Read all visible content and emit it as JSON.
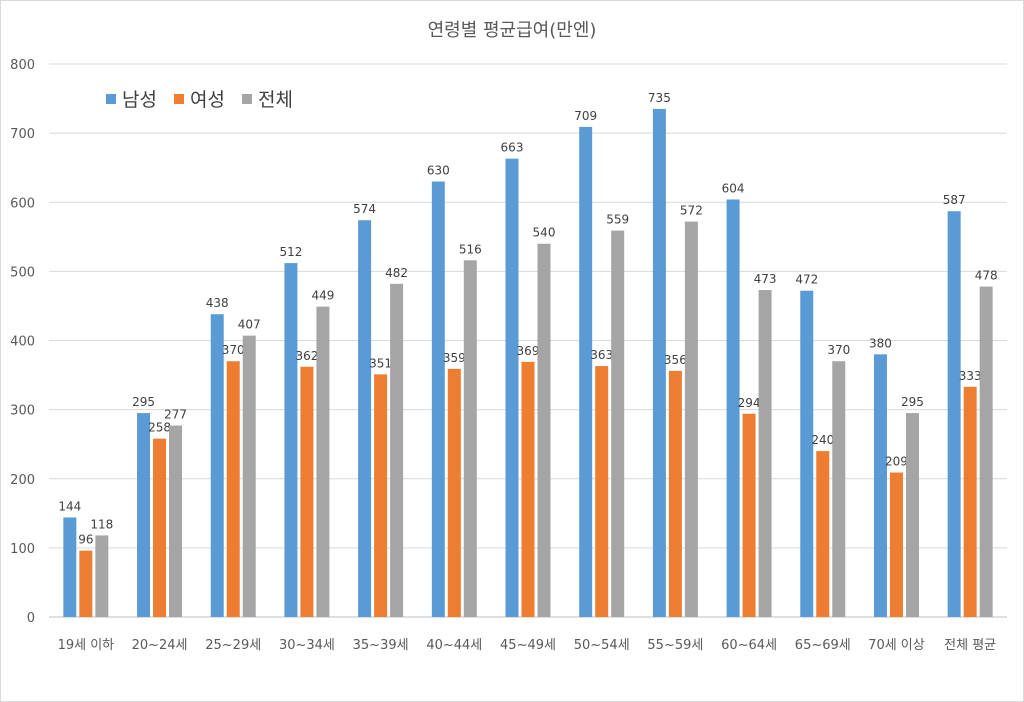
{
  "chart_data": {
    "type": "bar",
    "title": "연령별 평균급여(만엔)",
    "xlabel": "",
    "ylabel": "",
    "ylim": [
      0,
      800
    ],
    "yticks": [
      0,
      100,
      200,
      300,
      400,
      500,
      600,
      700,
      800
    ],
    "grid": true,
    "legend_position": "top-left",
    "categories": [
      "19세 이하",
      "20~24세",
      "25~29세",
      "30~34세",
      "35~39세",
      "40~44세",
      "45~49세",
      "50~54세",
      "55~59세",
      "60~64세",
      "65~69세",
      "70세 이상",
      "전체 평균"
    ],
    "series": [
      {
        "name": "남성",
        "color": "#5b9bd5",
        "values": [
          144,
          295,
          438,
          512,
          574,
          630,
          663,
          709,
          735,
          604,
          472,
          380,
          587
        ]
      },
      {
        "name": "여성",
        "color": "#ed7d31",
        "values": [
          96,
          258,
          370,
          362,
          351,
          359,
          369,
          363,
          356,
          294,
          240,
          209,
          333
        ]
      },
      {
        "name": "전체",
        "color": "#a5a5a5",
        "values": [
          118,
          277,
          407,
          449,
          482,
          516,
          540,
          559,
          572,
          473,
          370,
          295,
          478
        ]
      }
    ]
  }
}
